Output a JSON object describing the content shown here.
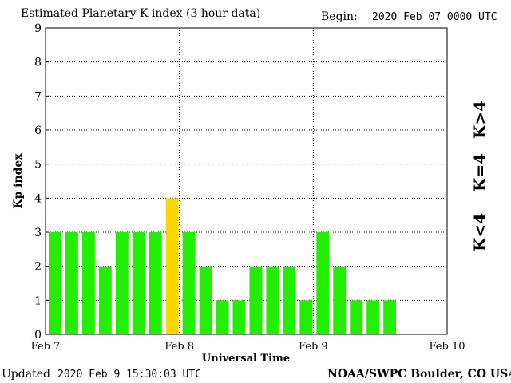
{
  "header": {
    "title": "Estimated Planetary K index (3 hour data)",
    "begin_label": "Begin:",
    "begin_value": "2020 Feb 07 0000 UTC"
  },
  "footer": {
    "updated_label": "Updated",
    "updated_value": "2020 Feb  9 15:30:03 UTC",
    "source": "NOAA/SWPC Boulder, CO USA"
  },
  "legend": {
    "high": "K>4",
    "mid": "K=4",
    "low": "K<4"
  },
  "colors": {
    "low": "#22ee00",
    "mid": "#ffd700",
    "high": "#ff2a00",
    "grid": "#000000"
  },
  "chart_data": {
    "type": "bar",
    "title": "Estimated Planetary K index (3 hour data)",
    "xlabel": "Universal Time",
    "ylabel": "Kp index",
    "ylim": [
      0,
      9
    ],
    "yticks": [
      "0",
      "1",
      "2",
      "3",
      "4",
      "5",
      "6",
      "7",
      "8",
      "9"
    ],
    "xticks": [
      "Feb 7",
      "Feb 8",
      "Feb 9",
      "Feb 10"
    ],
    "bin_hours": 3,
    "grid": true,
    "x": [
      "2020-02-07 00:00",
      "2020-02-07 03:00",
      "2020-02-07 06:00",
      "2020-02-07 09:00",
      "2020-02-07 12:00",
      "2020-02-07 15:00",
      "2020-02-07 18:00",
      "2020-02-07 21:00",
      "2020-02-08 00:00",
      "2020-02-08 03:00",
      "2020-02-08 06:00",
      "2020-02-08 09:00",
      "2020-02-08 12:00",
      "2020-02-08 15:00",
      "2020-02-08 18:00",
      "2020-02-08 21:00",
      "2020-02-09 00:00",
      "2020-02-09 03:00",
      "2020-02-09 06:00",
      "2020-02-09 09:00",
      "2020-02-09 12:00"
    ],
    "values": [
      3,
      3,
      3,
      2,
      3,
      3,
      3,
      4,
      3,
      2,
      1,
      1,
      2,
      2,
      2,
      1,
      3,
      2,
      1,
      1,
      1
    ]
  }
}
